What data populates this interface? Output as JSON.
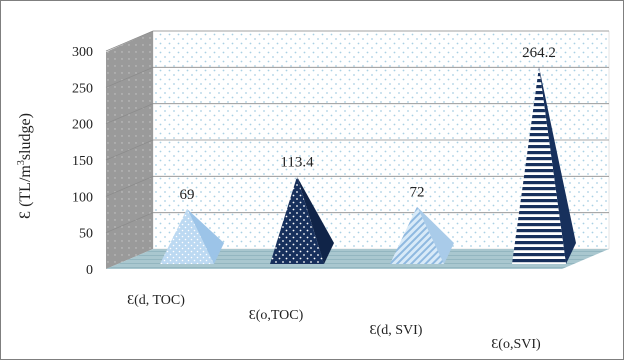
{
  "chart_data": {
    "type": "bar",
    "style": "3d-pyramid",
    "categories": [
      "Ɛ(d, TOC)",
      "Ɛ(o,TOC)",
      "Ɛ(d, SVI)",
      "Ɛ(o,SVI)"
    ],
    "values": [
      69,
      113.4,
      72,
      264.2
    ],
    "value_labels": [
      "69",
      "113.4",
      "72",
      "264.2"
    ],
    "ylabel_prefix": "Ɛ (TL/m",
    "ylabel_sup": "3",
    "ylabel_suffix": "sludge)",
    "ylim": [
      0,
      300
    ],
    "yticks": [
      "0",
      "50",
      "100",
      "150",
      "200",
      "250",
      "300"
    ],
    "grid": true,
    "legend": "none",
    "colors": {
      "series_light": "#bcd9f2",
      "series_dark": "#17305c",
      "wall": "#ffffff",
      "wall_dots": "#a9d0e4",
      "side_wall": "#9a9a9a",
      "floor": "#a6c4cc"
    }
  }
}
